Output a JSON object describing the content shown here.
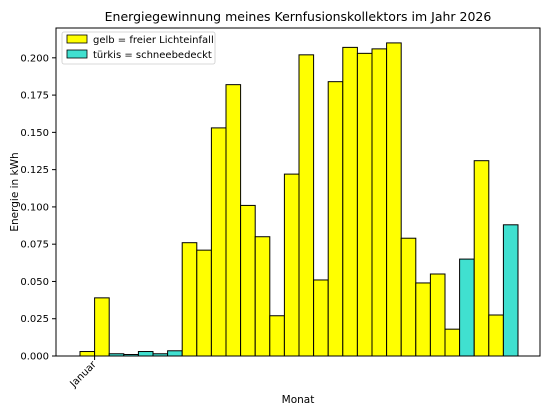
{
  "chart_data": {
    "type": "bar",
    "title": "Energiegewinnung meines Kernfusionskollektors im Jahr 2026",
    "xlabel": "Monat",
    "ylabel": "Energie in kWh",
    "ylim": [
      0,
      0.22
    ],
    "yticks": [
      "0.000",
      "0.025",
      "0.050",
      "0.075",
      "0.100",
      "0.125",
      "0.150",
      "0.175",
      "0.200"
    ],
    "ytick_values": [
      0,
      0.025,
      0.05,
      0.075,
      0.1,
      0.125,
      0.15,
      0.175,
      0.2
    ],
    "xtick_label": "Januar",
    "grid": false,
    "legend_position": "top-left",
    "legend": [
      {
        "label": "gelb = freier Lichteinfall",
        "color": "#ffff00"
      },
      {
        "label": "türkis = schneebedeckt",
        "color": "#40e0d0"
      }
    ],
    "values": [
      0.003,
      0.039,
      0.0015,
      0.001,
      0.003,
      0.0015,
      0.0035,
      0.076,
      0.071,
      0.153,
      0.182,
      0.101,
      0.08,
      0.027,
      0.122,
      0.202,
      0.051,
      0.184,
      0.207,
      0.203,
      0.206,
      0.21,
      0.079,
      0.049,
      0.055,
      0.018,
      0.065,
      0.131,
      0.0275,
      0.088
    ],
    "bar_colors": [
      "#ffff00",
      "#ffff00",
      "#40e0d0",
      "#40e0d0",
      "#40e0d0",
      "#40e0d0",
      "#40e0d0",
      "#ffff00",
      "#ffff00",
      "#ffff00",
      "#ffff00",
      "#ffff00",
      "#ffff00",
      "#ffff00",
      "#ffff00",
      "#ffff00",
      "#ffff00",
      "#ffff00",
      "#ffff00",
      "#ffff00",
      "#ffff00",
      "#ffff00",
      "#ffff00",
      "#ffff00",
      "#ffff00",
      "#ffff00",
      "#40e0d0",
      "#ffff00",
      "#ffff00",
      "#40e0d0"
    ]
  }
}
